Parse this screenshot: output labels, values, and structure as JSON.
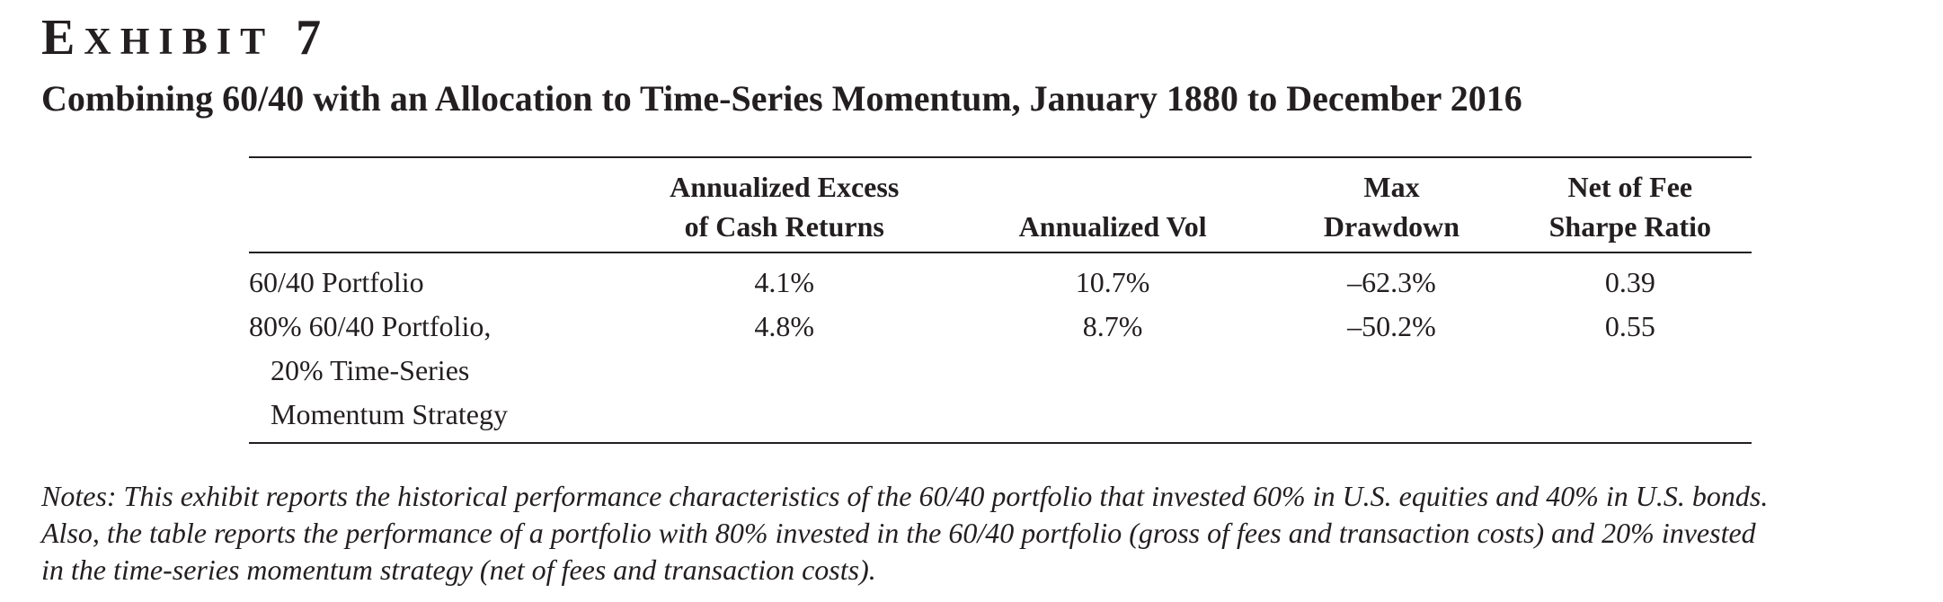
{
  "exhibit": {
    "label_first": "E",
    "label_rest": "XHIBIT",
    "number": "7",
    "title": "Combining 60/40 with an Allocation to Time-Series Momentum, January 1880 to December 2016"
  },
  "table": {
    "headers": [
      {
        "line1": "",
        "line2": ""
      },
      {
        "line1": "Annualized Excess",
        "line2": "of Cash Returns"
      },
      {
        "line1": "",
        "line2": "Annualized Vol"
      },
      {
        "line1": "Max",
        "line2": "Drawdown"
      },
      {
        "line1": "Net of Fee",
        "line2": "Sharpe Ratio"
      }
    ],
    "rows": [
      {
        "label_lines": [
          "60/40 Portfolio"
        ],
        "excess_return": "4.1%",
        "vol": "10.7%",
        "max_drawdown": "–62.3%",
        "sharpe": "0.39"
      },
      {
        "label_lines": [
          "80% 60/40 Portfolio,",
          "20% Time-Series",
          "Momentum Strategy"
        ],
        "excess_return": "4.8%",
        "vol": "8.7%",
        "max_drawdown": "–50.2%",
        "sharpe": "0.55"
      }
    ]
  },
  "notes": {
    "lines": [
      "Notes: This exhibit reports the historical performance characteristics of the 60/40 portfolio that invested 60% in U.S. equities and 40% in U.S. bonds.",
      "Also, the table reports the performance of a portfolio with 80% invested in the 60/40 portfolio (gross of fees and transaction costs) and 20% invested",
      "in the time-series momentum strategy (net of fees and transaction costs)."
    ]
  }
}
